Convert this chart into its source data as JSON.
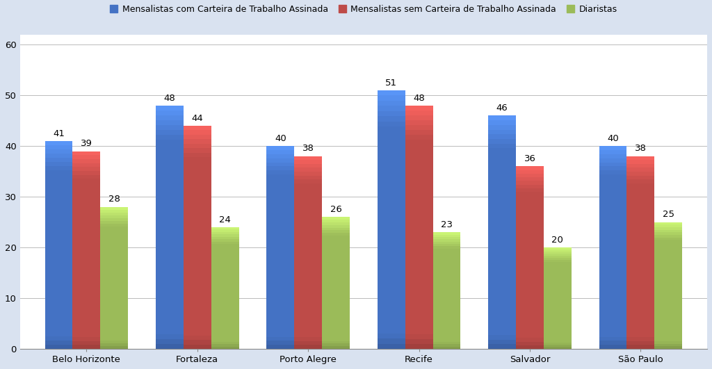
{
  "categories": [
    "Belo Horizonte",
    "Fortaleza",
    "Porto Alegre",
    "Recife",
    "Salvador",
    "São Paulo"
  ],
  "series": {
    "Mensalistas com Carteira de Trabalho Assinada": [
      41,
      48,
      40,
      51,
      46,
      40
    ],
    "Mensalistas sem Carteira de Trabalho Assinada": [
      39,
      44,
      38,
      48,
      36,
      38
    ],
    "Diaristas": [
      28,
      24,
      26,
      23,
      20,
      25
    ]
  },
  "colors": {
    "Mensalistas com Carteira de Trabalho Assinada": "#4472C4",
    "Mensalistas sem Carteira de Trabalho Assinada": "#BE4B48",
    "Diaristas": "#9BBB59"
  },
  "ylim": [
    0,
    62
  ],
  "yticks": [
    0,
    10,
    20,
    30,
    40,
    50,
    60
  ],
  "bar_width": 0.25,
  "label_fontsize": 9.5,
  "tick_fontsize": 9.5,
  "legend_fontsize": 9.0,
  "background_color": "#D9E2F0",
  "plot_bg_color": "#FFFFFF"
}
